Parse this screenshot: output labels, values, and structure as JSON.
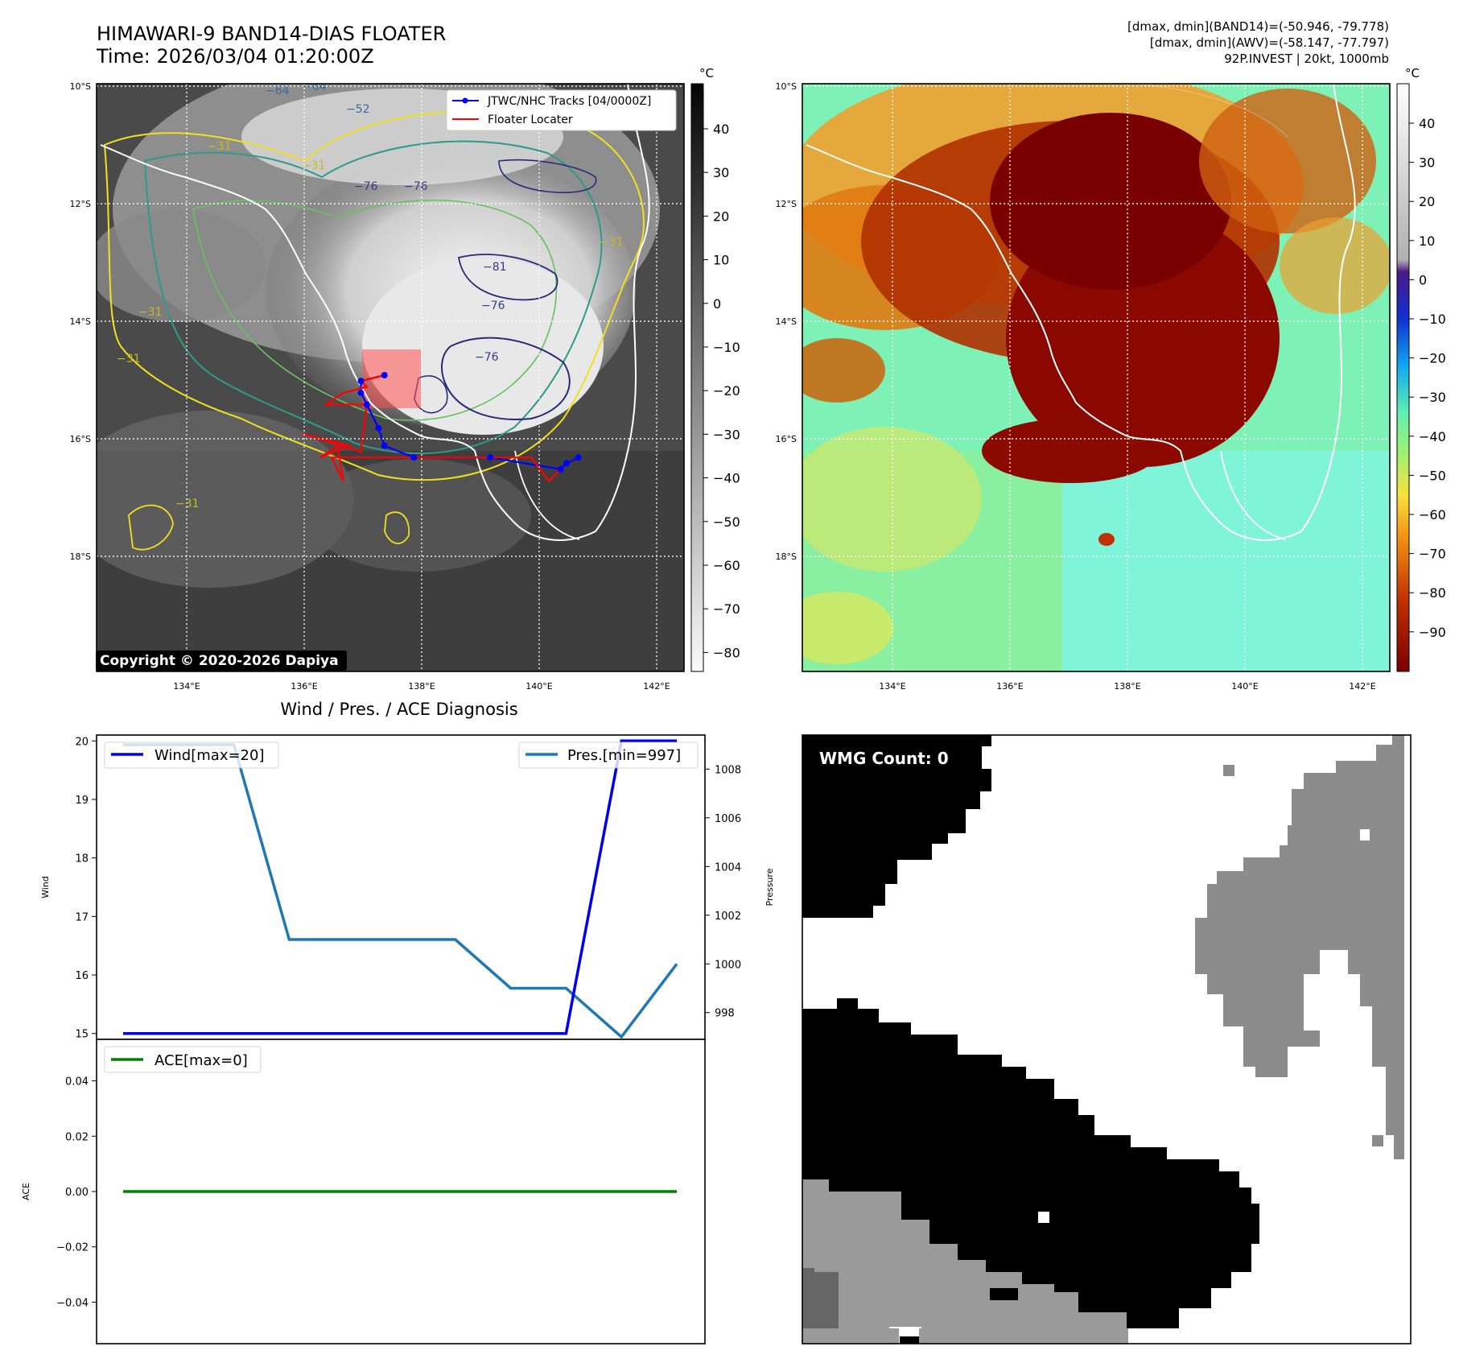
{
  "header": {
    "title_line1": "HIMAWARI-9 BAND14-DIAS FLOATER",
    "title_line2": "Time: 2026/03/04 01:20:00Z",
    "stats_line1": "[dmax, dmin](BAND14)=(-50.946, -79.778)",
    "stats_line2": "[dmax, dmin](AWV)=(-58.147, -77.797)",
    "stats_line3": "92P.INVEST | 20kt, 1000mb"
  },
  "map_panels": {
    "lat_labels": [
      "10°S",
      "12°S",
      "14°S",
      "16°S",
      "18°S"
    ],
    "lon_labels": [
      "134°E",
      "136°E",
      "138°E",
      "140°E",
      "142°E"
    ],
    "colorbar_unit": "°C",
    "left_colorbar_ticks": [
      "40",
      "30",
      "20",
      "10",
      "0",
      "−10",
      "−20",
      "−30",
      "−40",
      "−50",
      "−60",
      "−70",
      "−80"
    ],
    "right_colorbar_ticks": [
      "40",
      "30",
      "20",
      "10",
      "0",
      "−10",
      "−20",
      "−30",
      "−40",
      "−50",
      "−60",
      "−70",
      "−80",
      "−90"
    ],
    "legend_track": "JTWC/NHC Tracks [04/0000Z]",
    "legend_locater": "Floater Locater",
    "copyright": "Copyright © 2020-2026 Dapiya",
    "contour_labels": [
      "−64",
      "−64",
      "−52",
      "−31",
      "−31",
      "−76",
      "−76",
      "−81",
      "−76",
      "−76",
      "−31",
      "−31",
      "−31",
      "−31"
    ],
    "colors": {
      "track": "#0000ff",
      "locater": "#ff0000",
      "land": "#ffffff"
    }
  },
  "diagnosis": {
    "title": "Wind / Pres. / ACE Diagnosis",
    "wind_ylabel": "Wind",
    "pres_ylabel": "Pressure",
    "ace_ylabel": "ACE",
    "wind_legend": "Wind[max=20]",
    "pres_legend": "Pres.[min=997]",
    "ace_legend": "ACE[max=0]"
  },
  "wmg": {
    "label": "WMG Count: 0"
  },
  "chart_data": [
    {
      "type": "line",
      "title": "Wind / Pres. / ACE Diagnosis",
      "ylabel": "Wind",
      "ylim": [
        14.9,
        20.1
      ],
      "yticks": [
        15,
        16,
        17,
        18,
        19,
        20
      ],
      "series": [
        {
          "name": "Wind[max=20]",
          "color": "#0000ee",
          "values": [
            15,
            15,
            15,
            15,
            15,
            15,
            15,
            15,
            15,
            20,
            20
          ]
        }
      ],
      "secondary_y": {
        "label": "Pressure",
        "ylim": [
          996.9,
          1009.4
        ],
        "yticks": [
          998,
          1000,
          1002,
          1004,
          1006,
          1008
        ],
        "series": [
          {
            "name": "Pres.[min=997]",
            "color": "#1f77b4",
            "values": [
              1009,
              1009,
              1009,
              1001,
              1001,
              1001,
              1001,
              999,
              999,
              997,
              1000
            ]
          }
        ]
      }
    },
    {
      "type": "line",
      "ylabel": "ACE",
      "ylim": [
        -0.055,
        0.055
      ],
      "yticks": [
        -0.04,
        -0.02,
        0.0,
        0.02,
        0.04
      ],
      "ytick_labels": [
        "−0.04",
        "−0.02",
        "0.00",
        "0.02",
        "0.04"
      ],
      "series": [
        {
          "name": "ACE[max=0]",
          "color": "#008000",
          "values": [
            0,
            0,
            0,
            0,
            0,
            0,
            0,
            0,
            0,
            0,
            0
          ]
        }
      ]
    },
    {
      "type": "line",
      "xlabel": "",
      "ylabel": "",
      "x_unit": "°E",
      "y_unit": "°S",
      "xlim": [
        132.5,
        142.5
      ],
      "ylim": [
        10,
        20
      ],
      "series": [
        {
          "name": "JTWC/NHC Tracks [04/0000Z]",
          "color": "#0000ff",
          "x": [
            140.7,
            140.5,
            140.4,
            139.2,
            137.9,
            137.4,
            137.3,
            137.1,
            137.0,
            137.0,
            137.4
          ],
          "y": [
            16.4,
            16.5,
            16.6,
            16.4,
            16.4,
            16.2,
            15.9,
            15.5,
            15.3,
            15.1,
            15.0
          ]
        },
        {
          "name": "Floater Locater",
          "color": "#ff0000",
          "x": [
            140.4,
            140.2,
            139.9,
            136.5,
            136.7,
            136.6,
            136.3,
            136.8,
            136.0,
            137.0,
            137.1,
            136.4,
            136.7,
            137.1,
            137.0,
            137.4
          ],
          "y": [
            16.6,
            16.8,
            16.4,
            16.4,
            16.8,
            16.2,
            16.4,
            16.2,
            16.0,
            16.3,
            15.5,
            15.5,
            15.3,
            15.2,
            15.1,
            15.0
          ]
        }
      ]
    }
  ]
}
